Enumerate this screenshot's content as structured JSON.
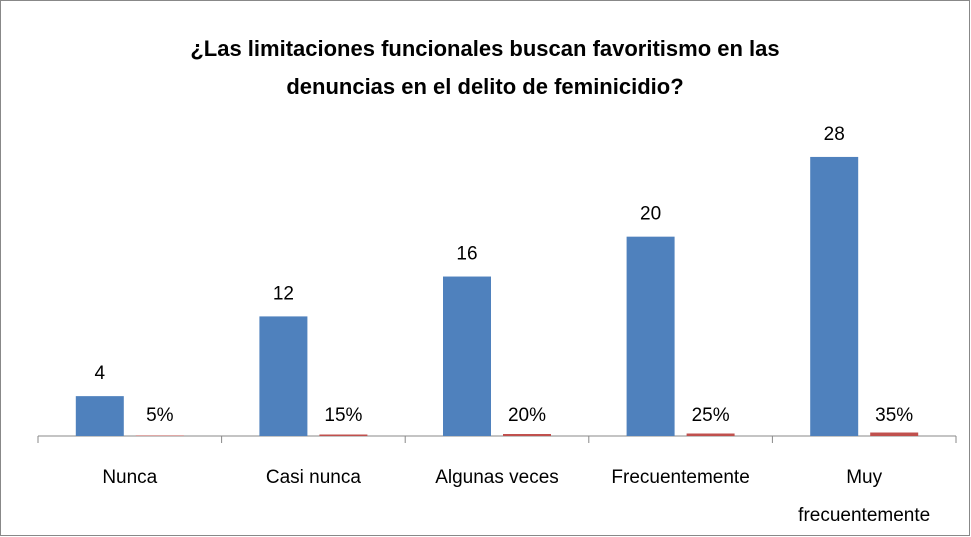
{
  "chart_data": {
    "type": "bar",
    "title": "¿Las limitaciones funcionales buscan favoritismo en las denuncias en el delito de feminicidio?",
    "categories": [
      "Nunca",
      "Casi nunca",
      "Algunas veces",
      "Frecuentemente",
      "Muy frecuentemente"
    ],
    "series": [
      {
        "color": "#4f81bd",
        "values": [
          4,
          12,
          16,
          20,
          28
        ]
      },
      {
        "color": "#c0504d",
        "values": [
          0.05,
          0.15,
          0.2,
          0.25,
          0.35
        ],
        "value_labels": [
          "5%",
          "15%",
          "20%",
          "25%",
          "35%"
        ]
      }
    ],
    "ylim": [
      0,
      30
    ]
  }
}
